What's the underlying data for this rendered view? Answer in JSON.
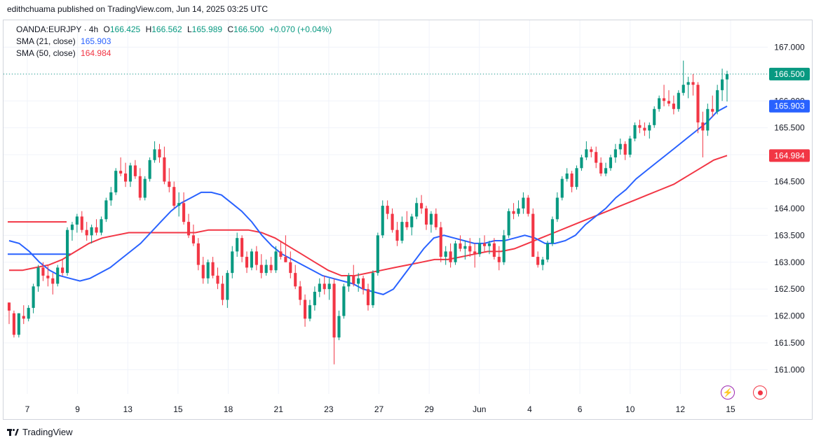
{
  "header": {
    "published": "edithchuama published on TradingView.com, Jun 14, 2025 03:25 UTC"
  },
  "legend": {
    "symbol": "OANDA:EURJPY · 4h",
    "o_label": "O",
    "o": "166.425",
    "h_label": "H",
    "h": "166.562",
    "l_label": "L",
    "l": "165.989",
    "c_label": "C",
    "c": "166.500",
    "change": "+0.070 (+0.04%)",
    "sma21_label": "SMA (21, close)",
    "sma21_value": "165.903",
    "sma50_label": "SMA (50, close)",
    "sma50_value": "164.984"
  },
  "footer": {
    "brand": "TradingView"
  },
  "icons": {
    "alert": "lightning-icon",
    "record": "record-icon"
  },
  "colors": {
    "up": "#089981",
    "down": "#f23645",
    "sma21": "#2962ff",
    "sma50": "#f23645",
    "grid": "#f0f3fa",
    "last_line": "#089981"
  },
  "chart_data": {
    "type": "candlestick",
    "symbol": "OANDA:EURJPY",
    "interval": "4h",
    "y_ticks": [
      "167.000",
      "166.500",
      "166.000",
      "165.500",
      "165.000",
      "164.500",
      "164.000",
      "163.500",
      "163.000",
      "162.500",
      "162.000",
      "161.500",
      "161.000"
    ],
    "ylim": [
      160.55,
      167.5
    ],
    "x_ticks": [
      "7",
      "9",
      "13",
      "15",
      "18",
      "21",
      "23",
      "27",
      "29",
      "Jun",
      "4",
      "6",
      "10",
      "12",
      "15"
    ],
    "price_labels": [
      {
        "value": 166.5,
        "text": "166.500",
        "color": "#089981"
      },
      {
        "value": 165.903,
        "text": "165.903",
        "color": "#2962ff"
      },
      {
        "value": 164.984,
        "text": "164.984",
        "color": "#f23645"
      }
    ],
    "candles": [
      [
        162.25,
        162.25,
        161.85,
        162.1
      ],
      [
        162.05,
        162.1,
        161.6,
        161.65
      ],
      [
        161.65,
        162.05,
        161.6,
        162.05
      ],
      [
        162.0,
        162.2,
        161.85,
        161.95
      ],
      [
        161.95,
        162.2,
        161.9,
        162.15
      ],
      [
        162.15,
        162.6,
        162.05,
        162.55
      ],
      [
        162.55,
        162.95,
        162.45,
        162.9
      ],
      [
        162.9,
        163.0,
        162.65,
        162.75
      ],
      [
        162.75,
        162.95,
        162.55,
        162.7
      ],
      [
        162.7,
        162.8,
        162.4,
        162.6
      ],
      [
        162.6,
        162.95,
        162.55,
        162.9
      ],
      [
        162.9,
        163.05,
        162.75,
        162.8
      ],
      [
        162.8,
        163.65,
        162.75,
        163.6
      ],
      [
        163.6,
        163.75,
        163.4,
        163.7
      ],
      [
        163.7,
        163.9,
        163.55,
        163.85
      ],
      [
        163.85,
        163.95,
        163.55,
        163.6
      ],
      [
        163.6,
        163.75,
        163.4,
        163.5
      ],
      [
        163.5,
        163.7,
        163.35,
        163.65
      ],
      [
        163.65,
        163.8,
        163.5,
        163.55
      ],
      [
        163.55,
        163.85,
        163.5,
        163.8
      ],
      [
        163.8,
        164.2,
        163.75,
        164.15
      ],
      [
        164.15,
        164.4,
        164.05,
        164.3
      ],
      [
        164.3,
        164.75,
        164.25,
        164.7
      ],
      [
        164.7,
        164.95,
        164.6,
        164.65
      ],
      [
        164.65,
        164.85,
        164.4,
        164.5
      ],
      [
        164.5,
        164.85,
        164.4,
        164.8
      ],
      [
        164.8,
        164.9,
        164.55,
        164.6
      ],
      [
        164.6,
        164.75,
        164.15,
        164.2
      ],
      [
        164.2,
        164.6,
        164.15,
        164.55
      ],
      [
        164.55,
        164.95,
        164.5,
        164.9
      ],
      [
        164.9,
        165.25,
        164.85,
        165.1
      ],
      [
        165.1,
        165.2,
        164.85,
        164.95
      ],
      [
        164.95,
        165.15,
        164.45,
        164.5
      ],
      [
        164.5,
        164.75,
        164.3,
        164.4
      ],
      [
        164.4,
        164.5,
        164.0,
        164.05
      ],
      [
        164.05,
        164.3,
        163.85,
        164.1
      ],
      [
        164.1,
        164.3,
        163.7,
        163.75
      ],
      [
        163.75,
        163.9,
        163.45,
        163.5
      ],
      [
        163.5,
        163.7,
        163.3,
        163.35
      ],
      [
        163.35,
        163.45,
        162.85,
        162.95
      ],
      [
        162.95,
        163.1,
        162.6,
        162.7
      ],
      [
        162.7,
        163.05,
        162.6,
        163.0
      ],
      [
        163.0,
        163.1,
        162.7,
        162.75
      ],
      [
        162.75,
        162.9,
        162.5,
        162.6
      ],
      [
        162.6,
        162.75,
        162.2,
        162.3
      ],
      [
        162.3,
        162.85,
        162.15,
        162.8
      ],
      [
        162.8,
        163.3,
        162.7,
        163.2
      ],
      [
        163.2,
        163.55,
        163.1,
        163.45
      ],
      [
        163.45,
        163.5,
        163.0,
        163.1
      ],
      [
        163.1,
        163.2,
        162.8,
        162.9
      ],
      [
        162.9,
        163.25,
        162.85,
        163.2
      ],
      [
        163.2,
        163.3,
        162.85,
        162.95
      ],
      [
        162.95,
        163.15,
        162.7,
        162.8
      ],
      [
        162.8,
        163.05,
        162.75,
        162.95
      ],
      [
        162.95,
        163.1,
        162.8,
        162.85
      ],
      [
        162.85,
        163.3,
        162.8,
        163.2
      ],
      [
        163.2,
        163.4,
        163.05,
        163.1
      ],
      [
        163.1,
        163.5,
        163.0,
        163.0
      ],
      [
        163.0,
        163.2,
        162.7,
        162.8
      ],
      [
        162.8,
        162.95,
        162.5,
        162.55
      ],
      [
        162.55,
        162.65,
        162.2,
        162.3
      ],
      [
        162.3,
        162.4,
        161.8,
        161.95
      ],
      [
        161.95,
        162.3,
        161.9,
        162.2
      ],
      [
        162.2,
        162.55,
        162.1,
        162.45
      ],
      [
        162.45,
        162.7,
        162.35,
        162.6
      ],
      [
        162.6,
        162.75,
        162.4,
        162.5
      ],
      [
        162.5,
        162.7,
        162.3,
        162.6
      ],
      [
        162.6,
        162.7,
        161.1,
        161.6
      ],
      [
        161.6,
        162.1,
        161.55,
        162.0
      ],
      [
        162.0,
        162.6,
        161.95,
        162.55
      ],
      [
        162.55,
        162.8,
        162.45,
        162.75
      ],
      [
        162.75,
        162.95,
        162.55,
        162.6
      ],
      [
        162.6,
        162.8,
        162.45,
        162.7
      ],
      [
        162.7,
        162.75,
        162.4,
        162.5
      ],
      [
        162.5,
        162.6,
        162.1,
        162.2
      ],
      [
        162.2,
        162.85,
        162.15,
        162.8
      ],
      [
        162.8,
        163.55,
        162.75,
        163.5
      ],
      [
        163.5,
        164.15,
        163.45,
        164.05
      ],
      [
        164.05,
        164.15,
        163.8,
        163.9
      ],
      [
        163.9,
        164.0,
        163.55,
        163.6
      ],
      [
        163.6,
        163.75,
        163.3,
        163.4
      ],
      [
        163.4,
        163.85,
        163.35,
        163.75
      ],
      [
        163.75,
        163.95,
        163.6,
        163.65
      ],
      [
        163.65,
        163.9,
        163.5,
        163.85
      ],
      [
        163.85,
        164.2,
        163.8,
        164.1
      ],
      [
        164.1,
        164.25,
        163.9,
        164.0
      ],
      [
        164.0,
        164.05,
        163.6,
        163.7
      ],
      [
        163.7,
        163.95,
        163.55,
        163.9
      ],
      [
        163.9,
        164.0,
        163.6,
        163.65
      ],
      [
        163.65,
        163.75,
        163.0,
        163.1
      ],
      [
        163.1,
        163.3,
        162.95,
        163.2
      ],
      [
        163.2,
        163.35,
        162.9,
        163.0
      ],
      [
        163.0,
        163.4,
        162.95,
        163.35
      ],
      [
        163.35,
        163.5,
        163.2,
        163.25
      ],
      [
        163.25,
        163.4,
        163.05,
        163.3
      ],
      [
        163.3,
        163.45,
        163.1,
        163.2
      ],
      [
        163.2,
        163.35,
        162.9,
        163.15
      ],
      [
        163.15,
        163.45,
        163.1,
        163.35
      ],
      [
        163.35,
        163.5,
        163.2,
        163.3
      ],
      [
        163.3,
        163.4,
        163.15,
        163.35
      ],
      [
        163.35,
        163.45,
        163.05,
        163.1
      ],
      [
        163.1,
        163.3,
        162.85,
        163.0
      ],
      [
        163.0,
        163.6,
        162.95,
        163.5
      ],
      [
        163.5,
        164.0,
        163.45,
        163.95
      ],
      [
        163.95,
        164.1,
        163.8,
        163.9
      ],
      [
        163.9,
        164.15,
        163.85,
        164.0
      ],
      [
        164.0,
        164.3,
        163.9,
        164.2
      ],
      [
        164.2,
        164.25,
        163.85,
        163.9
      ],
      [
        163.9,
        164.0,
        163.1,
        163.1
      ],
      [
        163.1,
        163.2,
        162.9,
        162.95
      ],
      [
        162.95,
        163.1,
        162.85,
        163.05
      ],
      [
        163.05,
        163.4,
        163.0,
        163.35
      ],
      [
        163.35,
        163.85,
        163.3,
        163.8
      ],
      [
        163.8,
        164.3,
        163.75,
        164.2
      ],
      [
        164.2,
        164.6,
        164.15,
        164.55
      ],
      [
        164.55,
        164.75,
        164.5,
        164.65
      ],
      [
        164.65,
        164.7,
        164.3,
        164.4
      ],
      [
        164.4,
        164.8,
        164.35,
        164.75
      ],
      [
        164.75,
        165.0,
        164.7,
        164.95
      ],
      [
        164.95,
        165.25,
        164.9,
        165.1
      ],
      [
        165.1,
        165.15,
        164.95,
        165.05
      ],
      [
        165.05,
        165.15,
        164.75,
        164.85
      ],
      [
        164.85,
        164.95,
        164.6,
        164.65
      ],
      [
        164.65,
        164.85,
        164.6,
        164.75
      ],
      [
        164.75,
        165.0,
        164.7,
        164.95
      ],
      [
        164.95,
        165.2,
        164.85,
        165.1
      ],
      [
        165.1,
        165.3,
        165.0,
        165.2
      ],
      [
        165.2,
        165.25,
        164.9,
        165.0
      ],
      [
        165.0,
        165.35,
        164.95,
        165.3
      ],
      [
        165.3,
        165.6,
        165.25,
        165.55
      ],
      [
        165.55,
        165.65,
        165.4,
        165.5
      ],
      [
        165.5,
        165.6,
        165.35,
        165.45
      ],
      [
        165.45,
        165.6,
        165.3,
        165.55
      ],
      [
        165.55,
        165.9,
        165.5,
        165.85
      ],
      [
        165.85,
        166.1,
        165.8,
        166.05
      ],
      [
        166.05,
        166.3,
        165.9,
        166.0
      ],
      [
        166.0,
        166.2,
        165.9,
        165.95
      ],
      [
        165.95,
        166.1,
        165.75,
        165.85
      ],
      [
        165.85,
        166.2,
        165.8,
        166.15
      ],
      [
        166.15,
        166.75,
        166.1,
        166.3
      ],
      [
        166.3,
        166.45,
        166.05,
        166.35
      ],
      [
        166.35,
        166.5,
        166.1,
        166.3
      ],
      [
        166.3,
        166.35,
        165.4,
        165.6
      ],
      [
        165.6,
        165.8,
        164.95,
        165.45
      ],
      [
        165.45,
        165.95,
        165.35,
        165.85
      ],
      [
        165.85,
        166.1,
        165.7,
        165.8
      ],
      [
        165.8,
        166.3,
        165.75,
        166.2
      ],
      [
        166.2,
        166.6,
        166.0,
        166.4
      ],
      [
        166.4,
        166.562,
        165.989,
        166.5
      ]
    ],
    "sma21": [
      163.4,
      163.35,
      163.2,
      163.0,
      162.85,
      162.75,
      162.7,
      162.65,
      162.7,
      162.8,
      162.9,
      163.05,
      163.2,
      163.35,
      163.55,
      163.75,
      163.95,
      164.1,
      164.2,
      164.3,
      164.3,
      164.25,
      164.1,
      163.95,
      163.75,
      163.5,
      163.3,
      163.15,
      163.05,
      162.95,
      162.85,
      162.75,
      162.7,
      162.65,
      162.6,
      162.5,
      162.45,
      162.4,
      162.5,
      162.75,
      163.0,
      163.25,
      163.45,
      163.5,
      163.45,
      163.4,
      163.35,
      163.35,
      163.4,
      163.4,
      163.45,
      163.5,
      163.45,
      163.35,
      163.35,
      163.4,
      163.5,
      163.7,
      163.85,
      164.0,
      164.2,
      164.35,
      164.55,
      164.7,
      164.85,
      165.0,
      165.15,
      165.3,
      165.45,
      165.6,
      165.8,
      165.903
    ],
    "sma50": [
      162.85,
      162.85,
      162.9,
      162.95,
      163.05,
      163.2,
      163.35,
      163.45,
      163.5,
      163.55,
      163.55,
      163.55,
      163.55,
      163.55,
      163.55,
      163.6,
      163.6,
      163.6,
      163.6,
      163.55,
      163.45,
      163.3,
      163.15,
      163.0,
      162.85,
      162.75,
      162.75,
      162.8,
      162.85,
      162.9,
      162.95,
      163.0,
      163.05,
      163.05,
      163.1,
      163.15,
      163.2,
      163.2,
      163.25,
      163.35,
      163.45,
      163.55,
      163.65,
      163.75,
      163.85,
      163.95,
      164.05,
      164.15,
      164.25,
      164.35,
      164.45,
      164.6,
      164.75,
      164.9,
      164.984
    ],
    "old_lines": [
      {
        "y": 163.75,
        "color": "#f23645"
      },
      {
        "y": 163.15,
        "color": "#2962ff"
      }
    ]
  }
}
